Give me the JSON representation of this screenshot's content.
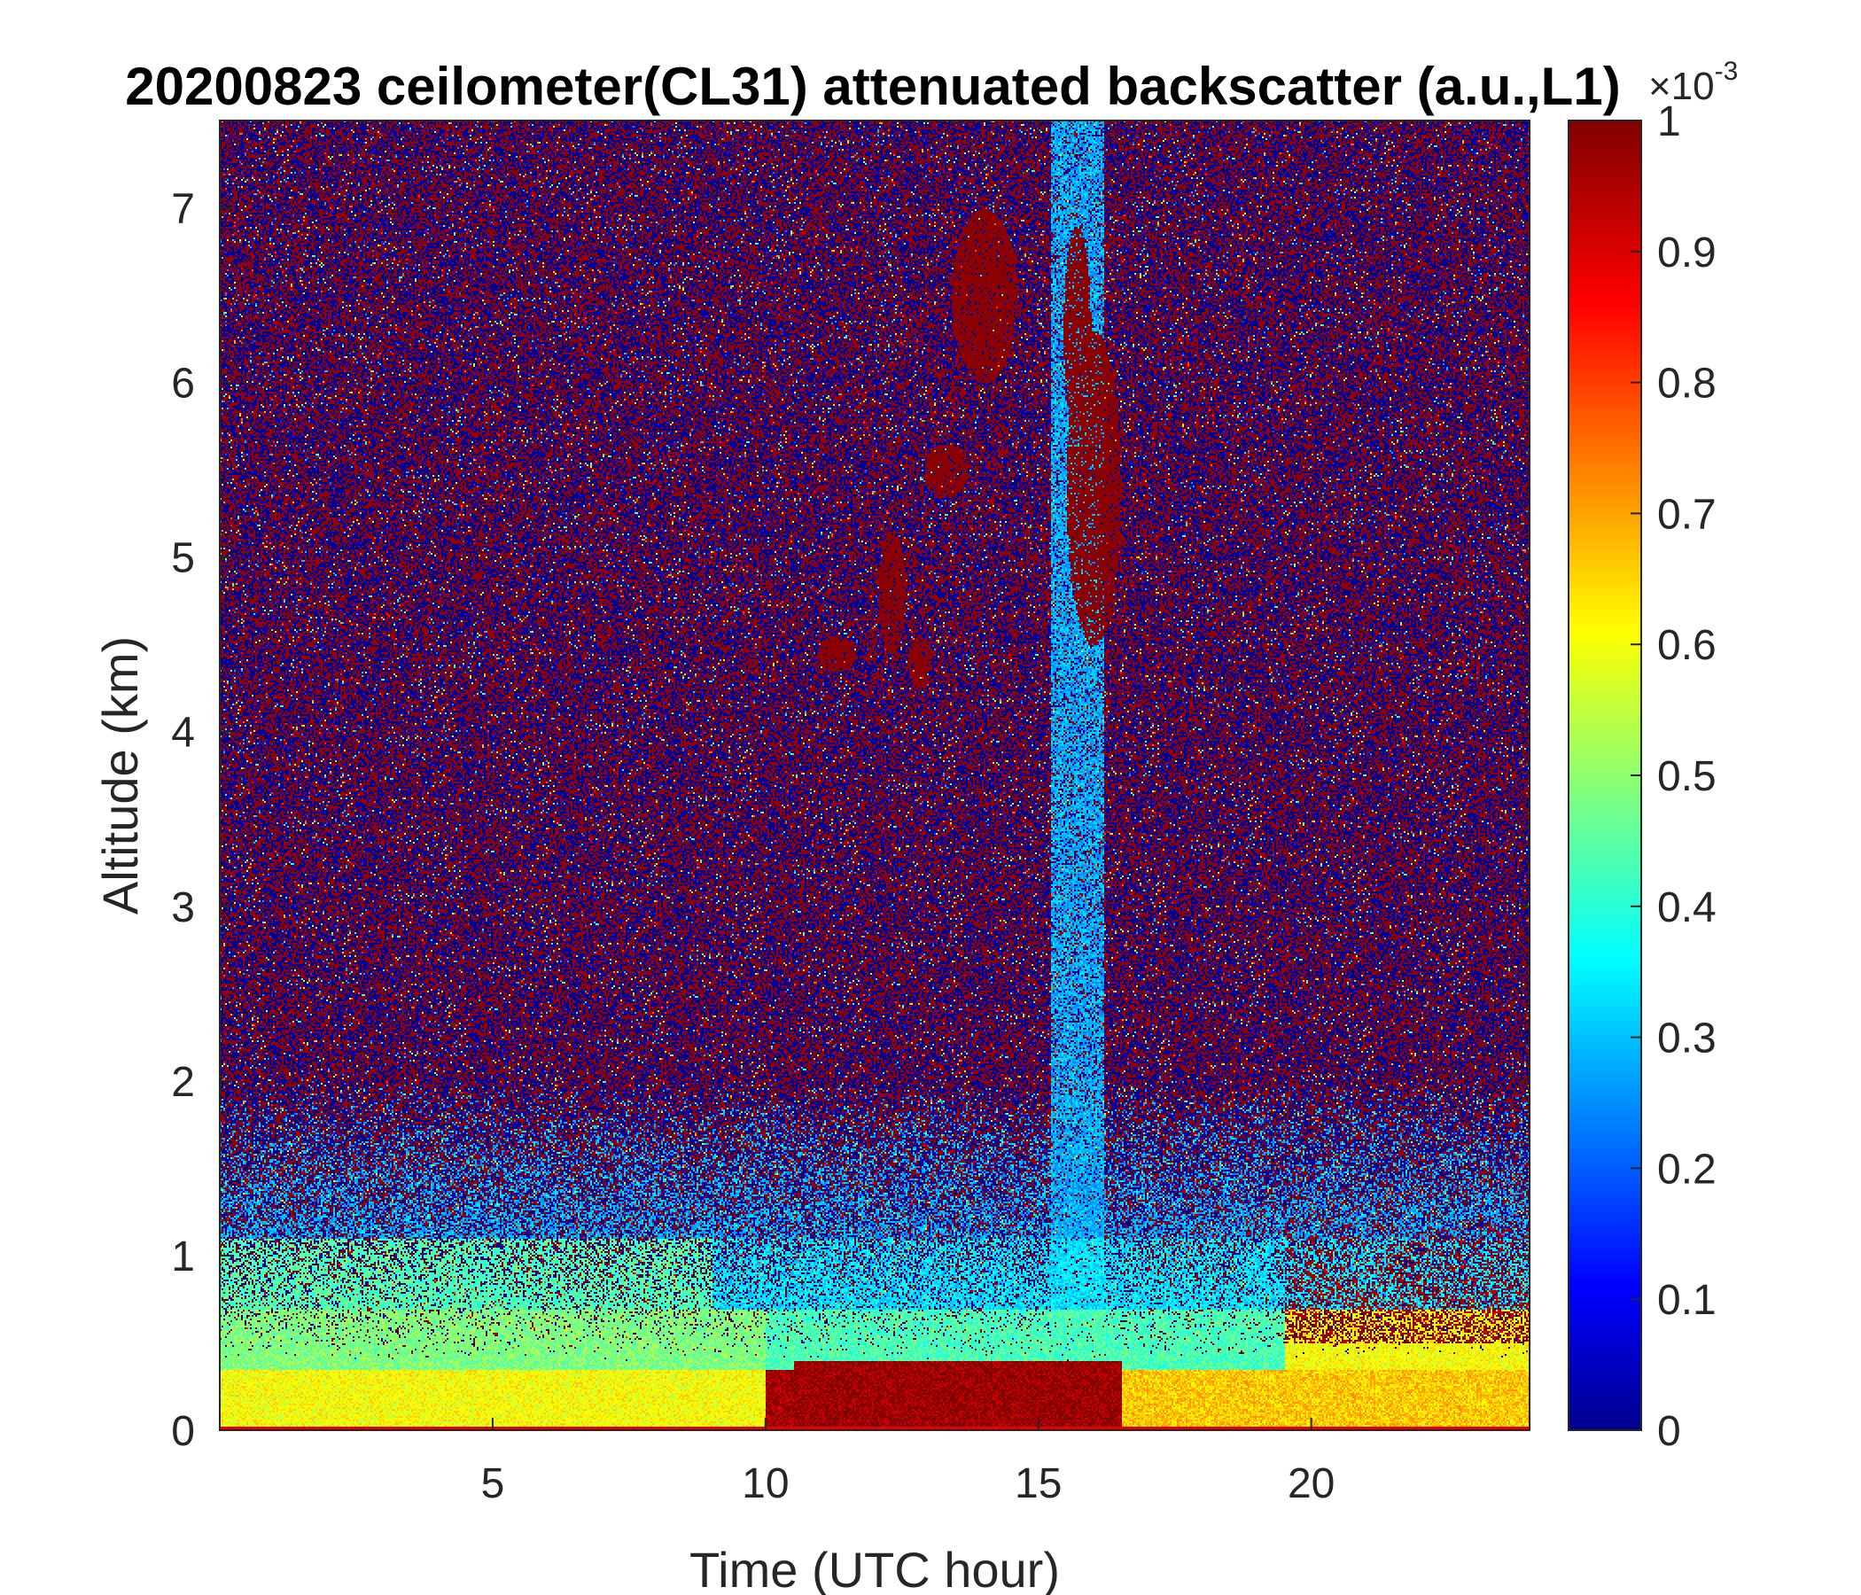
{
  "chart_data": {
    "type": "heatmap",
    "title": "20200823 ceilometer(CL31) attenuated backscatter (a.u.,L1)",
    "xlabel": "Time (UTC hour)",
    "ylabel": "Altitude (km)",
    "xlim": [
      0,
      24
    ],
    "ylim": [
      0,
      7.5
    ],
    "xticks": [
      5,
      10,
      15,
      20
    ],
    "yticks": [
      0,
      1,
      2,
      3,
      4,
      5,
      6,
      7
    ],
    "colorbar": {
      "colormap": "jet",
      "clim": [
        0,
        1
      ],
      "exponent_label": "×10",
      "exponent_power": "-3",
      "ticks": [
        0,
        0.1,
        0.2,
        0.3,
        0.4,
        0.5,
        0.6,
        0.7,
        0.8,
        0.9,
        1
      ],
      "tick_labels": [
        "0",
        "0.1",
        "0.2",
        "0.3",
        "0.4",
        "0.5",
        "0.6",
        "0.7",
        "0.8",
        "0.9",
        "1"
      ]
    },
    "features": [
      {
        "description": "noisy background speckle (blue/red)",
        "x_range": [
          0,
          24
        ],
        "y_range": [
          1.5,
          7.5
        ]
      },
      {
        "description": "low-level aerosol layer, yellow/cyan",
        "x_range": [
          0,
          10
        ],
        "y_range": [
          0,
          1.0
        ]
      },
      {
        "description": "strong backscatter layer (dark red)",
        "x_range": [
          10.5,
          16.5
        ],
        "y_range": [
          0,
          0.4
        ]
      },
      {
        "description": "clear column (low signal, blue)",
        "x_range": [
          15.2,
          16.2
        ],
        "y_range": [
          0.5,
          7.5
        ]
      },
      {
        "description": "elevated cloud patches (dark red)",
        "x_range": [
          11,
          17
        ],
        "y_range": [
          4.3,
          7.1
        ]
      },
      {
        "description": "boundary layer clouds (dark red)",
        "x_range": [
          19.5,
          24
        ],
        "y_range": [
          0.5,
          1.2
        ]
      }
    ]
  }
}
